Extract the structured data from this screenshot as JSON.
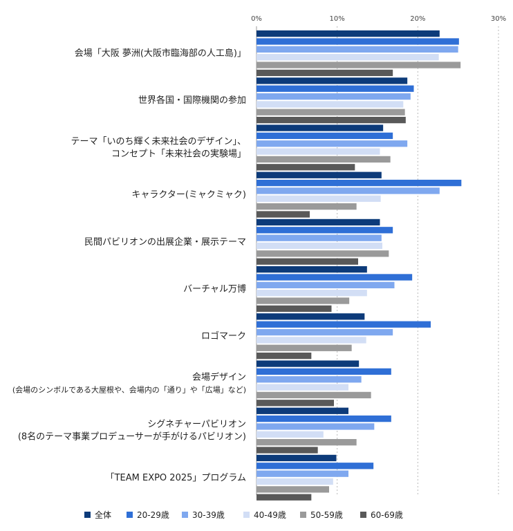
{
  "chart_data": {
    "type": "bar",
    "orientation": "horizontal",
    "title": "",
    "xlabel": "",
    "ylabel": "",
    "xlim": [
      0,
      30
    ],
    "ticks": [
      0,
      10,
      20,
      30
    ],
    "tick_labels": [
      "0%",
      "10%",
      "20%",
      "30%"
    ],
    "grid": true,
    "legend_position": "bottom",
    "categories": [
      {
        "lines": [
          "会場「大阪 夢洲(大阪市臨海部の人工島)」"
        ]
      },
      {
        "lines": [
          "世界各国・国際機関の参加"
        ]
      },
      {
        "lines": [
          "テーマ「いのち輝く未来社会のデザイン」、",
          "コンセプト「未来社会の実験場」"
        ]
      },
      {
        "lines": [
          "キャラクター(ミャクミャク)"
        ]
      },
      {
        "lines": [
          "民間パビリオンの出展企業・展示テーマ"
        ]
      },
      {
        "lines": [
          "バーチャル万博"
        ]
      },
      {
        "lines": [
          "ロゴマーク"
        ]
      },
      {
        "lines": [
          "会場デザイン",
          "(会場のシンボルである大屋根や、会場内の「通り」や「広場」など)"
        ]
      },
      {
        "lines": [
          "シグネチャーパビリオン",
          "(8名のテーマ事業プロデューサーが手がけるパビリオン)"
        ]
      },
      {
        "lines": [
          "「TEAM EXPO 2025」プログラム"
        ]
      }
    ],
    "series": [
      {
        "name": "全体",
        "color": "#0d3b7a",
        "values": [
          22.7,
          18.7,
          15.7,
          15.5,
          15.3,
          13.7,
          13.4,
          12.7,
          11.4,
          9.9
        ]
      },
      {
        "name": "20-29歳",
        "color": "#2f6fd6",
        "values": [
          25.1,
          19.5,
          16.9,
          25.4,
          16.9,
          19.3,
          21.6,
          16.7,
          16.7,
          14.5
        ]
      },
      {
        "name": "30-39歳",
        "color": "#7fa8ef",
        "values": [
          25.0,
          19.1,
          18.7,
          22.7,
          15.5,
          17.1,
          16.9,
          13.0,
          14.6,
          11.4
        ]
      },
      {
        "name": "40-49歳",
        "color": "#d2def5",
        "values": [
          22.6,
          18.2,
          15.3,
          15.4,
          15.6,
          13.7,
          13.6,
          11.4,
          8.3,
          9.5
        ]
      },
      {
        "name": "50-59歳",
        "color": "#9a9a9a",
        "values": [
          25.3,
          18.4,
          16.6,
          12.4,
          16.4,
          11.5,
          11.8,
          14.2,
          12.4,
          9.0
        ]
      },
      {
        "name": "60-69歳",
        "color": "#595959",
        "values": [
          16.9,
          18.5,
          12.2,
          6.6,
          12.6,
          9.3,
          6.8,
          9.6,
          7.6,
          6.8
        ]
      }
    ]
  }
}
